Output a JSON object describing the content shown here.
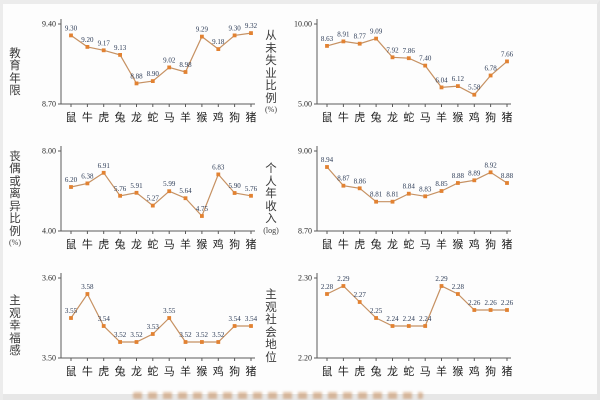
{
  "colors": {
    "line": "#c69162",
    "marker": "#e28232",
    "value_label": "#2b3a55",
    "axis": "#5a5a5a",
    "tick_label": "#2e2e2e",
    "category_label": "#222222"
  },
  "categories": [
    "鼠",
    "牛",
    "虎",
    "兔",
    "龙",
    "蛇",
    "马",
    "羊",
    "猴",
    "鸡",
    "狗",
    "猪"
  ],
  "chart_data": [
    {
      "type": "line",
      "title": "",
      "ylabel": "教育年限",
      "ylabel_suffix": "",
      "ylim": [
        8.7,
        9.4
      ],
      "ytick_labels": [
        "9.40",
        "8.70"
      ],
      "categories": [
        "鼠",
        "牛",
        "虎",
        "兔",
        "龙",
        "蛇",
        "马",
        "羊",
        "猴",
        "鸡",
        "狗",
        "猪"
      ],
      "values": [
        9.3,
        9.2,
        9.17,
        9.13,
        8.88,
        8.9,
        9.02,
        8.98,
        9.29,
        9.18,
        9.3,
        9.32
      ]
    },
    {
      "type": "line",
      "title": "",
      "ylabel": "从未失业比例",
      "ylabel_suffix": "(%)",
      "ylim": [
        5.0,
        10.0
      ],
      "ytick_labels": [
        "10.00",
        "5.00"
      ],
      "categories": [
        "鼠",
        "牛",
        "虎",
        "兔",
        "龙",
        "蛇",
        "马",
        "羊",
        "猴",
        "鸡",
        "狗",
        "猪"
      ],
      "values": [
        8.63,
        8.91,
        8.77,
        9.09,
        7.92,
        7.86,
        7.4,
        6.04,
        6.12,
        5.58,
        6.78,
        7.66
      ]
    },
    {
      "type": "line",
      "title": "",
      "ylabel": "丧偶或离异比例",
      "ylabel_suffix": "(%)",
      "ylim": [
        4.0,
        8.0
      ],
      "ytick_labels": [
        "8.00",
        "4.00"
      ],
      "categories": [
        "鼠",
        "牛",
        "虎",
        "兔",
        "龙",
        "蛇",
        "马",
        "羊",
        "猴",
        "鸡",
        "狗",
        "猪"
      ],
      "values": [
        6.2,
        6.38,
        6.91,
        5.76,
        5.91,
        5.27,
        5.99,
        5.64,
        4.75,
        6.83,
        5.9,
        5.76
      ]
    },
    {
      "type": "line",
      "title": "",
      "ylabel": "个人年收入",
      "ylabel_suffix": "(log)",
      "ylim": [
        8.7,
        9.0
      ],
      "ytick_labels": [
        "9.00",
        "8.70"
      ],
      "categories": [
        "鼠",
        "牛",
        "虎",
        "兔",
        "龙",
        "蛇",
        "马",
        "羊",
        "猴",
        "鸡",
        "狗",
        "猪"
      ],
      "values": [
        8.94,
        8.87,
        8.86,
        8.81,
        8.81,
        8.84,
        8.83,
        8.85,
        8.88,
        8.89,
        8.92,
        8.88
      ]
    },
    {
      "type": "line",
      "title": "",
      "ylabel": "主观幸福感",
      "ylabel_suffix": "",
      "ylim": [
        3.5,
        3.6
      ],
      "ytick_labels": [
        "3.60",
        "3.50"
      ],
      "categories": [
        "鼠",
        "牛",
        "虎",
        "兔",
        "龙",
        "蛇",
        "马",
        "羊",
        "猴",
        "鸡",
        "狗",
        "猪"
      ],
      "values": [
        3.55,
        3.58,
        3.54,
        3.52,
        3.52,
        3.53,
        3.55,
        3.52,
        3.52,
        3.52,
        3.54,
        3.54
      ]
    },
    {
      "type": "line",
      "title": "",
      "ylabel": "主观社会地位",
      "ylabel_suffix": "",
      "ylim": [
        2.2,
        2.3
      ],
      "ytick_labels": [
        "2.30",
        "2.20"
      ],
      "categories": [
        "鼠",
        "牛",
        "虎",
        "兔",
        "龙",
        "蛇",
        "马",
        "羊",
        "猴",
        "鸡",
        "狗",
        "猪"
      ],
      "values": [
        2.28,
        2.29,
        2.27,
        2.25,
        2.24,
        2.24,
        2.24,
        2.29,
        2.28,
        2.26,
        2.26,
        2.26
      ]
    }
  ]
}
